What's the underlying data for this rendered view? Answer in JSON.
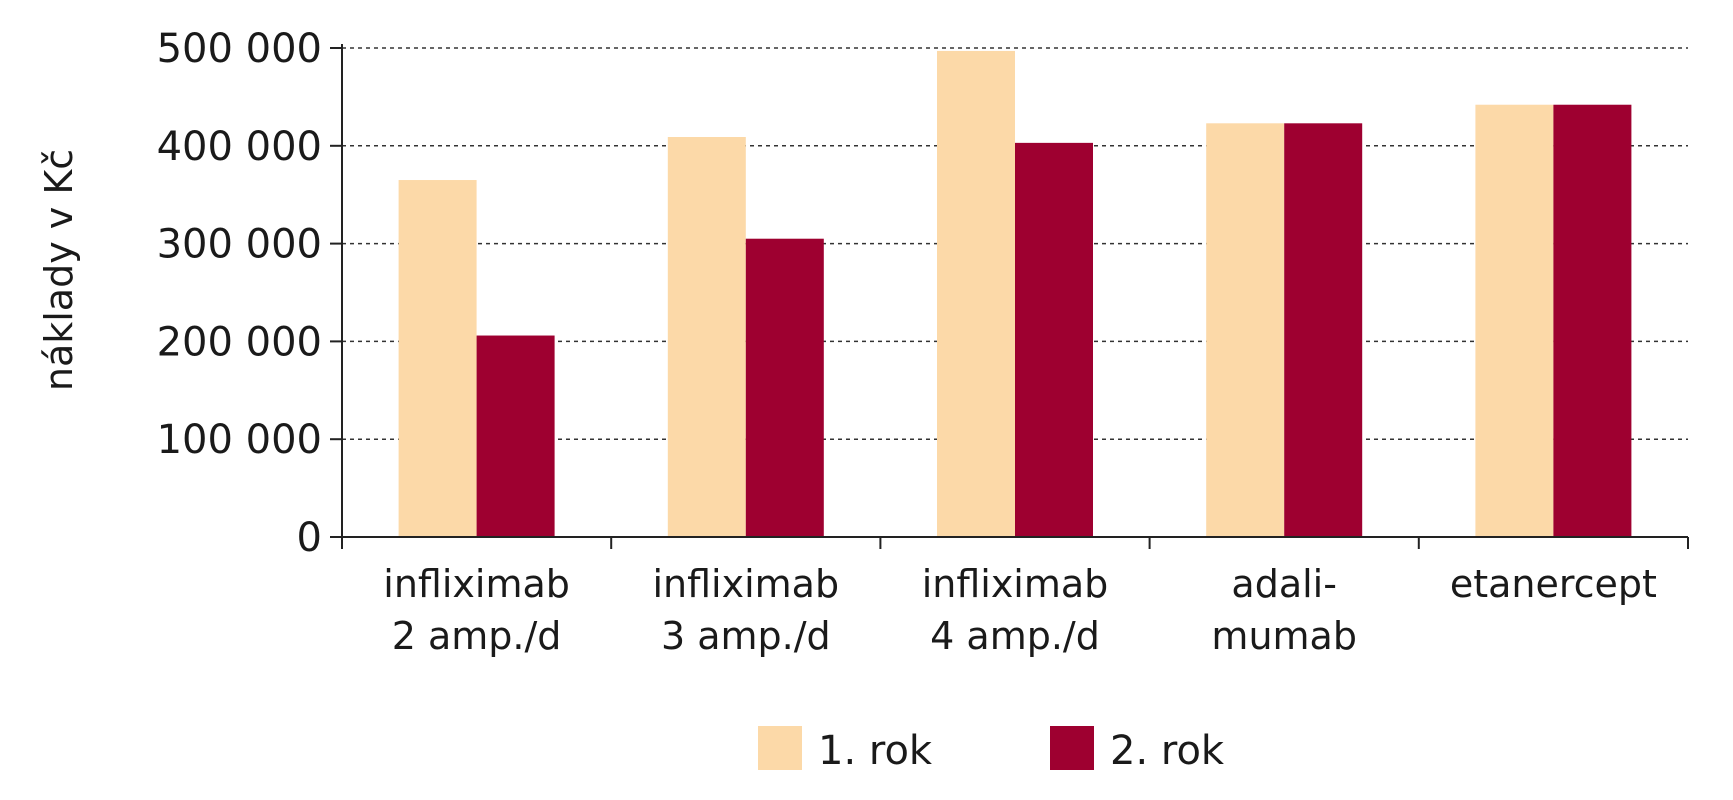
{
  "chart_data": {
    "type": "bar",
    "title": "",
    "xlabel": "",
    "ylabel": "náklady v Kč",
    "ylim": [
      0,
      500000
    ],
    "yticks": [
      0,
      100000,
      200000,
      300000,
      400000,
      500000
    ],
    "ytick_labels": [
      "0",
      "100 000",
      "200 000",
      "300 000",
      "400 000",
      "500 000"
    ],
    "grid": true,
    "legend_position": "bottom-center",
    "categories": [
      [
        "infliximab",
        "2 amp./d"
      ],
      [
        "infliximab",
        "3 amp./d"
      ],
      [
        "infliximab",
        "4 amp./d"
      ],
      [
        "adali-",
        "mumab"
      ],
      [
        "etanercept"
      ]
    ],
    "series": [
      {
        "name": "1. rok",
        "color": "#fcd9a8",
        "values": [
          365000,
          409000,
          497000,
          423000,
          442000
        ]
      },
      {
        "name": "2. rok",
        "color": "#9e0030",
        "values": [
          206000,
          305000,
          403000,
          423000,
          442000
        ]
      }
    ]
  }
}
